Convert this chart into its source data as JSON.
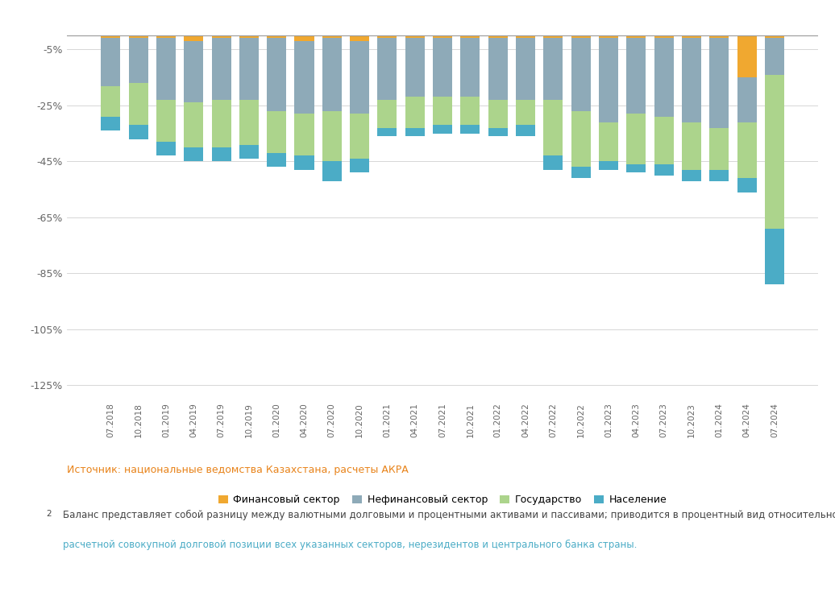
{
  "categories": [
    "07.2018",
    "10.2018",
    "01.2019",
    "04.2019",
    "07.2019",
    "10.2019",
    "01.2020",
    "04.2020",
    "07.2020",
    "10.2020",
    "01.2021",
    "04.2021",
    "07.2021",
    "10.2021",
    "01.2022",
    "04.2022",
    "07.2022",
    "10.2022",
    "01.2023",
    "04.2023",
    "07.2023",
    "10.2023",
    "01.2024",
    "04.2024",
    "07.2024"
  ],
  "financial": [
    -1,
    -1,
    -1,
    -2,
    -1,
    -1,
    -1,
    -2,
    -1,
    -2,
    -1,
    -1,
    -1,
    -1,
    -1,
    -1,
    -1,
    -1,
    -1,
    -1,
    -1,
    -1,
    -1,
    -15,
    -1
  ],
  "nonfinancial": [
    -17,
    -16,
    -22,
    -22,
    -22,
    -22,
    -26,
    -26,
    -26,
    -26,
    -22,
    -21,
    -21,
    -21,
    -22,
    -22,
    -22,
    -26,
    -30,
    -27,
    -28,
    -30,
    -32,
    -16,
    -13
  ],
  "government": [
    -11,
    -15,
    -15,
    -16,
    -17,
    -16,
    -15,
    -15,
    -18,
    -16,
    -10,
    -11,
    -10,
    -10,
    -10,
    -9,
    -20,
    -20,
    -14,
    -18,
    -17,
    -17,
    -15,
    -20,
    -55
  ],
  "population": [
    -5,
    -5,
    -5,
    -5,
    -5,
    -5,
    -5,
    -5,
    -7,
    -5,
    -3,
    -3,
    -3,
    -3,
    -3,
    -4,
    -5,
    -4,
    -3,
    -3,
    -4,
    -4,
    -4,
    -5,
    -20
  ],
  "colors": {
    "financial": "#f0a830",
    "nonfinancial": "#8eaab8",
    "government": "#acd48c",
    "population": "#4bacc6"
  },
  "legend_labels": [
    "Финансовый сектор",
    "Нефинансовый сектор",
    "Государство",
    "Население"
  ],
  "source_text": "Источник: национальные ведомства Казахстана, расчеты АКРА",
  "footnote_num": "2",
  "footnote_text": "Баланс представляет собой разницу между валютными долговыми и процентными активами и пассивами; приводится в процентный вид относительно",
  "footnote_text2": "расчетной совокупной долговой позиции всех указанных секторов, нерезидентов и центрального банка страны.",
  "ylim": [
    -130,
    2
  ],
  "yticks": [
    -125,
    -105,
    -85,
    -65,
    -45,
    -25,
    -5,
    0
  ],
  "ytick_labels": [
    "-125%",
    "-105%",
    "-85%",
    "-65%",
    "-45%",
    "-25%",
    "-5%",
    ""
  ],
  "bg_color": "#ffffff",
  "source_color": "#e8831a",
  "footnote_color": "#4bacc6"
}
